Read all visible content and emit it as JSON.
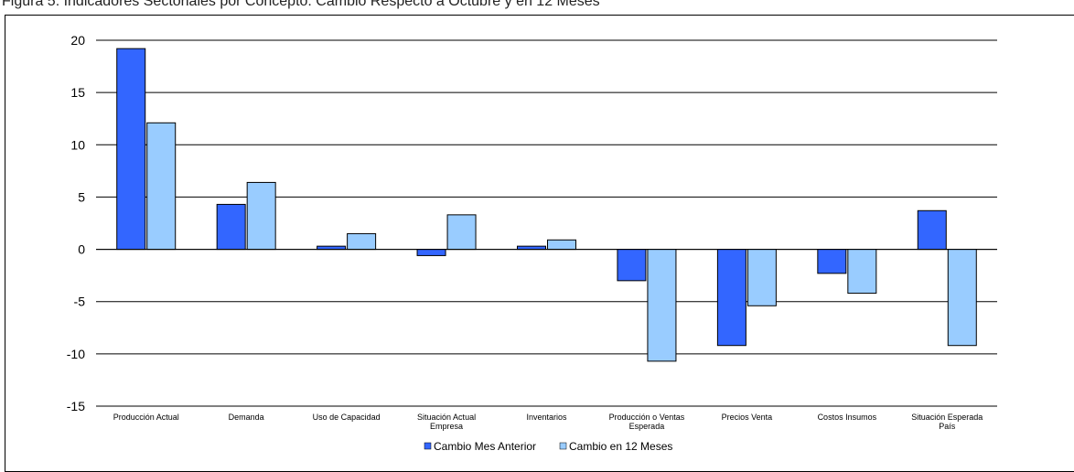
{
  "chart_data": {
    "type": "bar",
    "title": "Figura 5: Indicadores Sectoriales por Concepto: Cambio Respecto a Octubre y en 12 Meses",
    "categories": [
      [
        "Producción Actual"
      ],
      [
        "Demanda"
      ],
      [
        "Uso de Capacidad"
      ],
      [
        "Situación Actual",
        "Empresa"
      ],
      [
        "Inventarios"
      ],
      [
        "Producción o Ventas",
        "Esperada"
      ],
      [
        "Precios Venta"
      ],
      [
        "Costos Insumos"
      ],
      [
        "Situación Esperada",
        "País"
      ]
    ],
    "series": [
      {
        "name": "Cambio Mes Anterior",
        "color": "#3366ff",
        "values": [
          19.2,
          4.3,
          0.3,
          -0.6,
          0.3,
          -3.0,
          -9.2,
          -2.3,
          3.7
        ]
      },
      {
        "name": "Cambio en 12 Meses",
        "color": "#99ccff",
        "values": [
          12.1,
          6.4,
          1.5,
          3.3,
          0.9,
          -10.7,
          -5.4,
          -4.2,
          -9.2
        ]
      }
    ],
    "ylim": [
      -15,
      20
    ],
    "yticks": [
      20,
      15,
      10,
      5,
      0,
      -5,
      -10,
      -15
    ],
    "grid": true,
    "legend": "bottom"
  }
}
